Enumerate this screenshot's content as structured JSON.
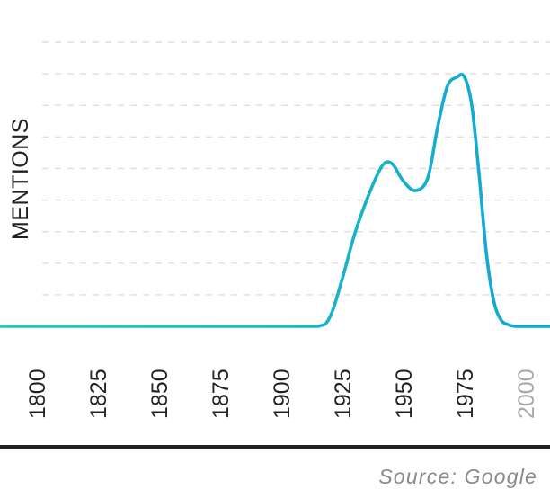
{
  "chart_data": {
    "type": "line",
    "ylabel": "MENTIONS",
    "xlabel": "",
    "x_ticks": [
      "1800",
      "1825",
      "1850",
      "1875",
      "1900",
      "1925",
      "1950",
      "1975",
      "2000"
    ],
    "x_ticks_muted": [
      "2000"
    ],
    "xlim": [
      1785,
      2010
    ],
    "ylim": [
      0,
      9
    ],
    "grid": true,
    "source": "Source: Google",
    "colors": {
      "line_start": "#29c7b0",
      "line_end": "#11a6d6",
      "grid": "#dedede",
      "baseline": "#222222",
      "muted_tick": "#a9a9a9"
    },
    "series": [
      {
        "x": [
          1785,
          1800,
          1825,
          1850,
          1875,
          1900,
          1915,
          1920,
          1925,
          1930,
          1935,
          1940,
          1943,
          1946,
          1950,
          1955,
          1960,
          1964,
          1968,
          1972,
          1975,
          1978,
          1981,
          1984,
          1987,
          1990,
          1993,
          1996,
          1999,
          2002,
          2005,
          2010
        ],
        "y": [
          0,
          0,
          0,
          0,
          0,
          0,
          0,
          0.3,
          1.5,
          2.9,
          4.0,
          4.9,
          5.2,
          5.1,
          4.6,
          4.3,
          4.7,
          6.3,
          7.6,
          7.9,
          7.9,
          7.0,
          4.8,
          2.3,
          0.8,
          0.2,
          0.05,
          0,
          0,
          0,
          0,
          0
        ]
      }
    ]
  }
}
